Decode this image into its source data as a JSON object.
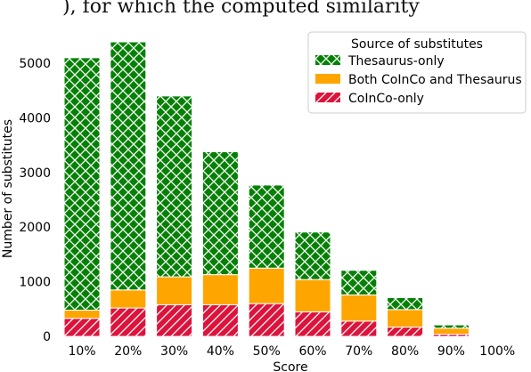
{
  "top_fragment": "), for which the computed similarity",
  "colors": {
    "thesaurus_only": "#058005",
    "both": "#ffa500",
    "coinco_only": "#dc143c",
    "hatch": "#ffffff"
  },
  "chart_data": {
    "type": "bar",
    "stacked": true,
    "title": "",
    "xlabel": "Score",
    "ylabel": "Number of substitutes",
    "ylim": [
      0,
      5500
    ],
    "yticks": [
      0,
      1000,
      2000,
      3000,
      4000,
      5000
    ],
    "categories": [
      "10%",
      "20%",
      "30%",
      "40%",
      "50%",
      "60%",
      "70%",
      "80%",
      "90%",
      "100%"
    ],
    "legend": {
      "title": "Source of substitutes",
      "placement": "top-right"
    },
    "series": [
      {
        "name": "CoInCo-only",
        "color": "#dc143c",
        "hatch": "diagonal",
        "values": [
          330,
          520,
          580,
          580,
          600,
          450,
          280,
          170,
          40,
          0
        ]
      },
      {
        "name": "Both CoInCo and Thesaurus",
        "color": "#ffa500",
        "hatch": "none",
        "values": [
          150,
          330,
          510,
          550,
          650,
          590,
          480,
          320,
          110,
          0
        ]
      },
      {
        "name": "Thesaurus-only",
        "color": "#058005",
        "hatch": "cross",
        "values": [
          4620,
          4540,
          3310,
          2250,
          1520,
          870,
          450,
          220,
          60,
          0
        ]
      }
    ],
    "grid": false
  }
}
